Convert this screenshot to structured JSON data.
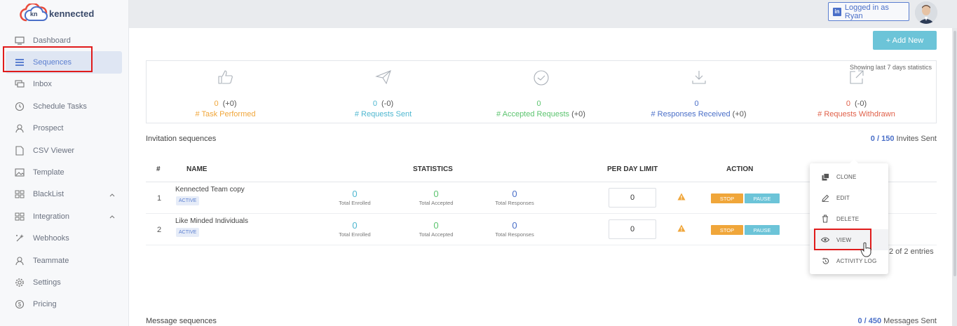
{
  "app": {
    "brand": "kennected",
    "logo_mark": "kn"
  },
  "sidebar": {
    "items": [
      {
        "label": "Dashboard",
        "icon": "monitor-icon"
      },
      {
        "label": "Sequences",
        "icon": "list-icon",
        "active": true
      },
      {
        "label": "Inbox",
        "icon": "chat-icon"
      },
      {
        "label": "Schedule Tasks",
        "icon": "clock-icon"
      },
      {
        "label": "Prospect",
        "icon": "user-icon"
      },
      {
        "label": "CSV Viewer",
        "icon": "file-icon"
      },
      {
        "label": "Template",
        "icon": "image-icon"
      },
      {
        "label": "BlackList",
        "icon": "grid-icon",
        "expandable": true
      },
      {
        "label": "Integration",
        "icon": "grid-icon",
        "expandable": true
      },
      {
        "label": "Webhooks",
        "icon": "sparkle-icon"
      },
      {
        "label": "Teammate",
        "icon": "user-icon"
      },
      {
        "label": "Settings",
        "icon": "gear-icon"
      },
      {
        "label": "Pricing",
        "icon": "dollar-icon"
      }
    ]
  },
  "header": {
    "linkedin_badge": "in",
    "login_status": "Logged in as Ryan"
  },
  "toolbar": {
    "add_new": "+ Add New"
  },
  "stats": {
    "note": "Showing last 7 days statistics",
    "items": [
      {
        "value": "0",
        "delta": "(+0)",
        "label": "# Task Performed",
        "label_delta": "",
        "color": "#f0a63a",
        "icon": "thumbs-up-icon"
      },
      {
        "value": "0",
        "delta": "(-0)",
        "label": "# Requests Sent",
        "label_delta": "",
        "color": "#4fb7d0",
        "icon": "paper-plane-icon"
      },
      {
        "value": "0",
        "delta": "",
        "label": "# Accepted Requests",
        "label_delta": "(+0)",
        "color": "#5cc46f",
        "icon": "check-circle-icon"
      },
      {
        "value": "0",
        "delta": "",
        "label": "# Responses Received",
        "label_delta": "(+0)",
        "color": "#4a6fc8",
        "icon": "download-icon"
      },
      {
        "value": "0",
        "delta": "(-0)",
        "label": "# Requests Withdrawn",
        "label_delta": "",
        "color": "#e0614a",
        "icon": "external-link-icon"
      }
    ]
  },
  "invitations": {
    "title": "Invitation sequences",
    "sent_count": "0",
    "sent_total": "/ 150",
    "sent_suffix": "Invites Sent",
    "columns": {
      "num": "#",
      "name": "NAME",
      "statistics": "STATISTICS",
      "limit": "PER DAY LIMIT",
      "action": "ACTION"
    },
    "rows": [
      {
        "num": "1",
        "name": "Kennected Team copy",
        "status": "ACTIVE",
        "enrolled": "0",
        "accepted": "0",
        "responses": "0",
        "limit": "0"
      },
      {
        "num": "2",
        "name": "Like Minded Individuals",
        "status": "ACTIVE",
        "enrolled": "0",
        "accepted": "0",
        "responses": "0",
        "limit": "0"
      }
    ],
    "metric_labels": {
      "enrolled": "Total Enrolled",
      "accepted": "Total Accepted",
      "responses": "Total Responses"
    },
    "stop_label": "STOP",
    "pause_label": "PAUSE",
    "entries": "2 of 2 entries"
  },
  "action_menu": {
    "items": [
      {
        "label": "CLONE",
        "icon": "clone-icon"
      },
      {
        "label": "EDIT",
        "icon": "pencil-icon"
      },
      {
        "label": "DELETE",
        "icon": "trash-icon"
      },
      {
        "label": "VIEW",
        "icon": "eye-icon",
        "hovered": true
      },
      {
        "label": "ACTIVITY LOG",
        "icon": "history-icon"
      }
    ]
  },
  "messages": {
    "title": "Message sequences",
    "sent_count": "0",
    "sent_total": "/ 450",
    "sent_suffix": "Messages Sent"
  },
  "colors": {
    "accent": "#5b7fd0",
    "teal": "#6cc4d8",
    "orange": "#f0a63a",
    "green": "#5cc46f",
    "red": "#e0614a",
    "highlight": "#e01b1b"
  }
}
